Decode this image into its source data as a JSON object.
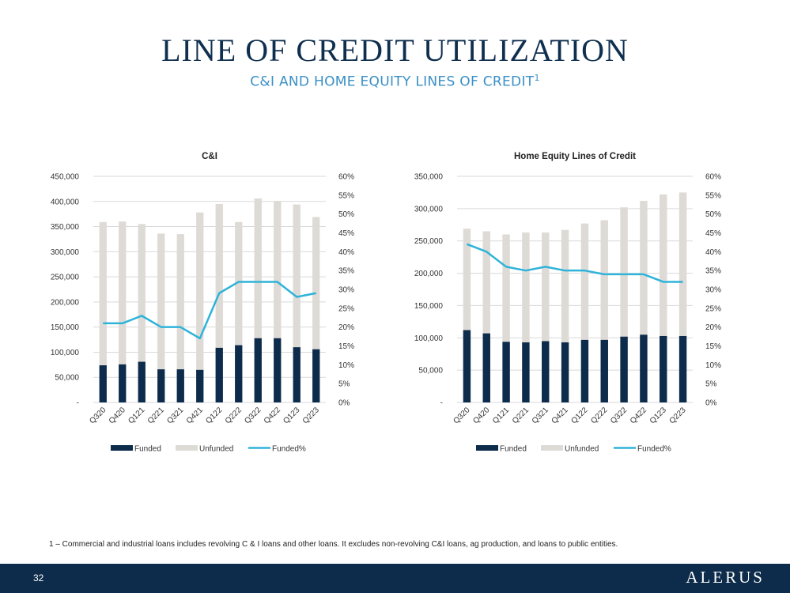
{
  "header": {
    "title": "LINE OF CREDIT UTILIZATION",
    "subtitle": "C&I AND HOME EQUITY LINES OF CREDIT",
    "subtitle_sup": "1"
  },
  "footnote": "1 – Commercial and industrial loans includes revolving C & I loans and other loans. It excludes non-revolving C&I loans, ag production, and loans to public entities.",
  "footer": {
    "page_number": "32",
    "logo": "ALERUS"
  },
  "colors": {
    "funded": "#0d2b4a",
    "unfunded": "#dedbd6",
    "funded_pct": "#2fb3d9",
    "title": "#0f2f4f",
    "subtitle": "#3a8fc4"
  },
  "chart_data": [
    {
      "type": "bar",
      "stacked": true,
      "title": "C&I",
      "categories": [
        "Q320",
        "Q420",
        "Q121",
        "Q221",
        "Q321",
        "Q421",
        "Q122",
        "Q222",
        "Q322",
        "Q422",
        "Q123",
        "Q223"
      ],
      "series": [
        {
          "name": "Funded",
          "kind": "bar",
          "values": [
            74000,
            76000,
            81000,
            66000,
            66000,
            65000,
            109000,
            114000,
            128000,
            128000,
            110000,
            106000
          ]
        },
        {
          "name": "Unfunded",
          "kind": "bar",
          "values": [
            285000,
            284000,
            274000,
            270000,
            269000,
            313000,
            286000,
            245000,
            278000,
            273000,
            284000,
            263000
          ]
        },
        {
          "name": "Funded%",
          "kind": "line",
          "axis": "right",
          "values": [
            21,
            21,
            23,
            20,
            20,
            17,
            29,
            32,
            32,
            32,
            28,
            29
          ]
        }
      ],
      "ylim": [
        0,
        450000
      ],
      "yticks": [
        "-",
        "50,000",
        "100,000",
        "150,000",
        "200,000",
        "250,000",
        "300,000",
        "350,000",
        "400,000",
        "450,000"
      ],
      "y2lim": [
        0,
        60
      ],
      "y2ticks": [
        "0%",
        "5%",
        "10%",
        "15%",
        "20%",
        "25%",
        "30%",
        "35%",
        "40%",
        "45%",
        "50%",
        "55%",
        "60%"
      ],
      "grid": true,
      "legend": "bottom"
    },
    {
      "type": "bar",
      "stacked": true,
      "title": "Home Equity Lines of Credit",
      "categories": [
        "Q320",
        "Q420",
        "Q121",
        "Q221",
        "Q321",
        "Q421",
        "Q122",
        "Q222",
        "Q322",
        "Q422",
        "Q123",
        "Q223"
      ],
      "series": [
        {
          "name": "Funded",
          "kind": "bar",
          "values": [
            112000,
            107000,
            94000,
            93000,
            95000,
            93000,
            97000,
            97000,
            102000,
            105000,
            103000,
            103000
          ]
        },
        {
          "name": "Unfunded",
          "kind": "bar",
          "values": [
            157000,
            158000,
            166000,
            170000,
            168000,
            174000,
            180000,
            185000,
            200000,
            207000,
            219000,
            222000
          ]
        },
        {
          "name": "Funded%",
          "kind": "line",
          "axis": "right",
          "values": [
            42,
            40,
            36,
            35,
            36,
            35,
            35,
            34,
            34,
            34,
            32,
            32
          ]
        }
      ],
      "ylim": [
        0,
        350000
      ],
      "yticks": [
        "-",
        "50,000",
        "100,000",
        "150,000",
        "200,000",
        "250,000",
        "300,000",
        "350,000"
      ],
      "y2lim": [
        0,
        60
      ],
      "y2ticks": [
        "0%",
        "5%",
        "10%",
        "15%",
        "20%",
        "25%",
        "30%",
        "35%",
        "40%",
        "45%",
        "50%",
        "55%",
        "60%"
      ],
      "grid": true,
      "legend": "bottom"
    }
  ]
}
